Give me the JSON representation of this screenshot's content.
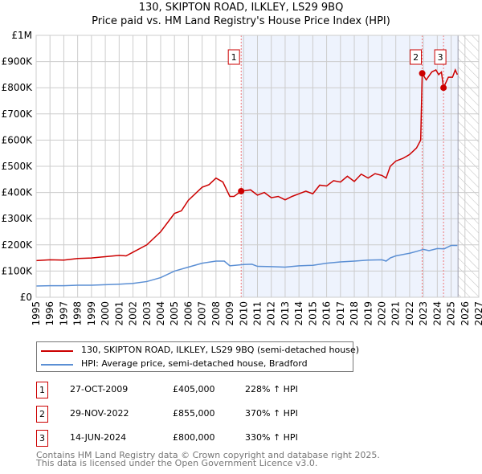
{
  "chart_data": {
    "type": "line",
    "title": "130, SKIPTON ROAD, ILKLEY, LS29 9BQ",
    "subtitle": "Price paid vs. HM Land Registry's House Price Index (HPI)",
    "xlim": [
      1995,
      2027
    ],
    "ylim": [
      0,
      1000000
    ],
    "x_ticks": [
      "1995",
      "1996",
      "1997",
      "1998",
      "1999",
      "2000",
      "2001",
      "2002",
      "2003",
      "2004",
      "2005",
      "2006",
      "2007",
      "2008",
      "2009",
      "2010",
      "2011",
      "2012",
      "2013",
      "2014",
      "2015",
      "2016",
      "2017",
      "2018",
      "2019",
      "2020",
      "2021",
      "2022",
      "2023",
      "2024",
      "2025",
      "2026",
      "2027"
    ],
    "y_ticks": [
      {
        "v": 0,
        "l": "£0"
      },
      {
        "v": 100000,
        "l": "£100K"
      },
      {
        "v": 200000,
        "l": "£200K"
      },
      {
        "v": 300000,
        "l": "£300K"
      },
      {
        "v": 400000,
        "l": "£400K"
      },
      {
        "v": 500000,
        "l": "£500K"
      },
      {
        "v": 600000,
        "l": "£600K"
      },
      {
        "v": 700000,
        "l": "£700K"
      },
      {
        "v": 800000,
        "l": "£800K"
      },
      {
        "v": 900000,
        "l": "£900K"
      },
      {
        "v": 1000000,
        "l": "£1M"
      }
    ],
    "grid": true,
    "shaded_range": [
      2009.82,
      2025.5
    ],
    "forecast_hatch_from": 2025.5,
    "series": [
      {
        "name": "130, SKIPTON ROAD, ILKLEY, LS29 9BQ (semi-detached house)",
        "color": "#cc0000",
        "x": [
          1995,
          1996,
          1997,
          1998,
          1999,
          2000,
          2001,
          2001.5,
          2002,
          2003,
          2004,
          2005,
          2005.5,
          2006,
          2007,
          2007.5,
          2008,
          2008.5,
          2009,
          2009.3,
          2009.82,
          2010.5,
          2011,
          2011.5,
          2012,
          2012.5,
          2013,
          2013.5,
          2014,
          2014.5,
          2015,
          2015.5,
          2016,
          2016.5,
          2017,
          2017.5,
          2018,
          2018.5,
          2019,
          2019.5,
          2020,
          2020.3,
          2020.6,
          2021,
          2021.5,
          2022,
          2022.5,
          2022.8,
          2022.91,
          2023.2,
          2023.6,
          2023.9,
          2024.1,
          2024.3,
          2024.45,
          2024.8,
          2025.1,
          2025.3,
          2025.45
        ],
        "y": [
          140000,
          143000,
          142000,
          148000,
          150000,
          155000,
          160000,
          158000,
          172000,
          200000,
          250000,
          320000,
          330000,
          370000,
          420000,
          430000,
          455000,
          440000,
          385000,
          385000,
          405000,
          410000,
          390000,
          400000,
          380000,
          385000,
          372000,
          385000,
          395000,
          405000,
          395000,
          428000,
          425000,
          445000,
          440000,
          462000,
          442000,
          470000,
          455000,
          472000,
          465000,
          455000,
          500000,
          520000,
          530000,
          545000,
          570000,
          600000,
          855000,
          830000,
          860000,
          868000,
          850000,
          860000,
          800000,
          840000,
          840000,
          868000,
          850000
        ]
      },
      {
        "name": "HPI: Average price, semi-detached house, Bradford",
        "color": "#5b8fd4",
        "x": [
          1995,
          1996,
          1997,
          1998,
          1999,
          2000,
          2001,
          2002,
          2003,
          2004,
          2005,
          2006,
          2007,
          2008,
          2008.6,
          2009,
          2010,
          2010.6,
          2011,
          2012,
          2013,
          2014,
          2015,
          2016,
          2017,
          2018,
          2019,
          2020,
          2020.3,
          2020.6,
          2021,
          2022,
          2022.5,
          2023,
          2023.4,
          2024,
          2024.5,
          2025,
          2025.45
        ],
        "y": [
          43000,
          44000,
          44000,
          46000,
          46000,
          48000,
          50000,
          53000,
          60000,
          75000,
          100000,
          115000,
          130000,
          138000,
          138000,
          120000,
          125000,
          126000,
          118000,
          117000,
          115000,
          120000,
          122000,
          130000,
          135000,
          138000,
          142000,
          143000,
          138000,
          150000,
          158000,
          168000,
          175000,
          183000,
          178000,
          186000,
          185000,
          198000,
          198000
        ]
      }
    ],
    "sales": [
      {
        "label": "1",
        "x": 2009.82,
        "y": 405000,
        "date": "27-OCT-2009",
        "price": "£405,000",
        "hpi": "228% ↑ HPI"
      },
      {
        "label": "2",
        "x": 2022.91,
        "y": 855000,
        "date": "29-NOV-2022",
        "price": "£855,000",
        "hpi": "370% ↑ HPI"
      },
      {
        "label": "3",
        "x": 2024.45,
        "y": 800000,
        "date": "14-JUN-2024",
        "price": "£800,000",
        "hpi": "330% ↑ HPI"
      }
    ]
  },
  "footer": {
    "line1": "Contains HM Land Registry data © Crown copyright and database right 2025.",
    "line2": "This data is licensed under the Open Government Licence v3.0."
  }
}
